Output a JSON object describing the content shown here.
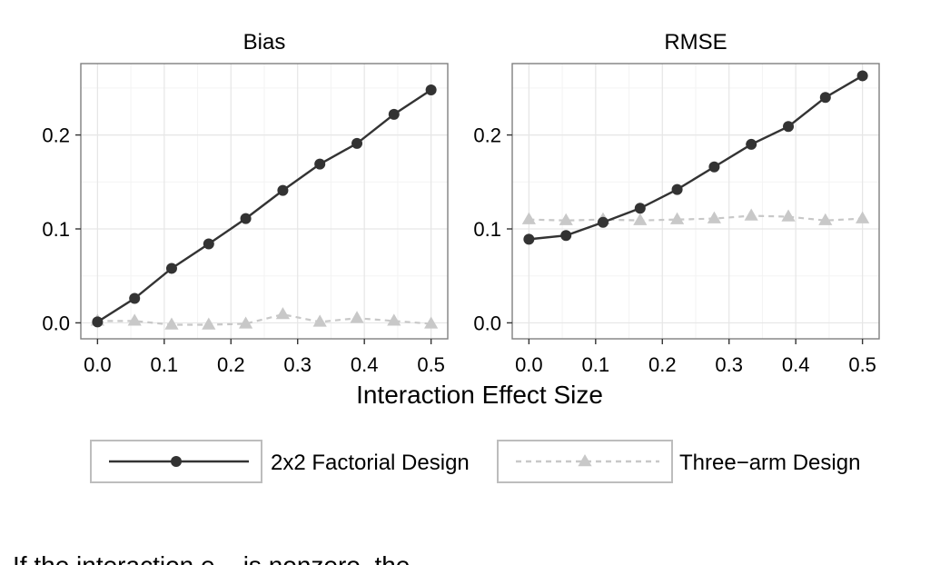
{
  "chart_data": {
    "type": "line",
    "xlabel": "Interaction Effect Size",
    "x_ticks": [
      "0.0",
      "0.1",
      "0.2",
      "0.3",
      "0.4",
      "0.5"
    ],
    "y_ticks": [
      "0.0",
      "0.1",
      "0.2"
    ],
    "xlim": [
      -0.025,
      0.525
    ],
    "ylim": [
      -0.017,
      0.276
    ],
    "grid": true,
    "legend_position": "bottom",
    "x": [
      0,
      0.0556,
      0.1111,
      0.1667,
      0.2222,
      0.2778,
      0.3333,
      0.3889,
      0.4444,
      0.5
    ],
    "series_styles": [
      {
        "name": "2x2 Factorial Design",
        "color": "#333333",
        "line": "solid",
        "marker": "circle"
      },
      {
        "name": "Three−arm Design",
        "color": "#c8c8c8",
        "line": "dashed",
        "marker": "triangle"
      }
    ],
    "panels": [
      {
        "title": "Bias",
        "series": [
          {
            "name": "2x2 Factorial Design",
            "values": [
              0.001,
              0.026,
              0.058,
              0.084,
              0.111,
              0.141,
              0.169,
              0.191,
              0.222,
              0.248
            ]
          },
          {
            "name": "Three−arm Design",
            "values": [
              0.002,
              0.002,
              -0.002,
              -0.002,
              -0.001,
              0.009,
              0.001,
              0.005,
              0.002,
              -0.001
            ]
          }
        ]
      },
      {
        "title": "RMSE",
        "series": [
          {
            "name": "2x2 Factorial Design",
            "values": [
              0.089,
              0.093,
              0.107,
              0.122,
              0.142,
              0.166,
              0.19,
              0.209,
              0.24,
              0.263
            ]
          },
          {
            "name": "Three−arm Design",
            "values": [
              0.11,
              0.109,
              0.11,
              0.109,
              0.11,
              0.111,
              0.114,
              0.113,
              0.109,
              0.111
            ]
          }
        ]
      }
    ]
  },
  "caption": {
    "text": "If the interaction e... is nonzero, the"
  }
}
